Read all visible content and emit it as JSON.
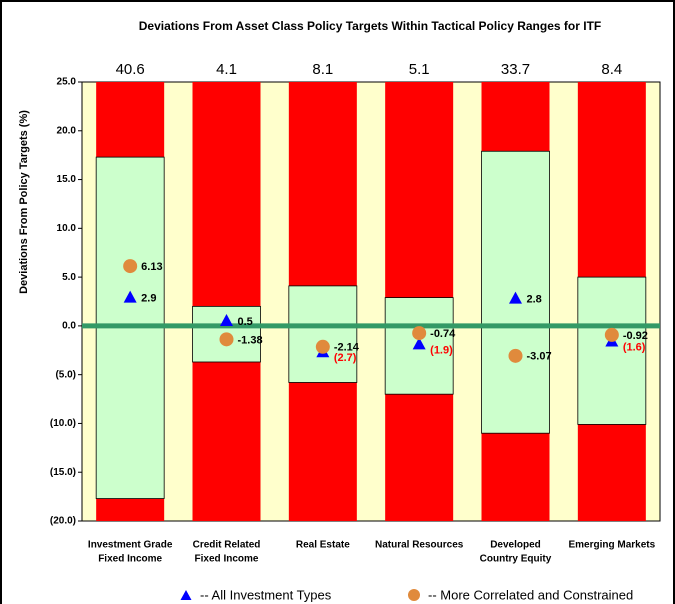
{
  "chart_data": {
    "type": "range_column",
    "title": "Deviations From Asset Class Policy Targets Within Tactical Policy Ranges for  ITF",
    "y_label": "Deviations From Policy Targets (%)",
    "categories": [
      [
        "Investment Grade",
        "Fixed Income"
      ],
      [
        "Credit Related",
        "Fixed Income"
      ],
      [
        "Real Estate"
      ],
      [
        "Natural Resources"
      ],
      [
        "Developed",
        "Country Equity"
      ],
      [
        "Emerging Markets"
      ]
    ],
    "policy_targets": [
      40.6,
      4.1,
      8.1,
      5.1,
      33.7,
      8.4
    ],
    "range_low": [
      -17.7,
      -3.7,
      -5.8,
      -7.0,
      -11.0,
      -10.1
    ],
    "range_high": [
      17.3,
      2.0,
      4.1,
      2.9,
      17.9,
      5.0
    ],
    "range_color": "#ccffcc",
    "outside_color": "#ff0000",
    "plot_background": "#ffffcc",
    "zero_line_color": "#339966",
    "series": [
      {
        "name": "--  All Investment Types",
        "color": "#0000ff",
        "marker": "triangle",
        "values": [
          2.9,
          0.5,
          -2.7,
          -1.9,
          2.8,
          -1.6
        ],
        "value_labels": [
          "2.9",
          "0.5",
          "(2.7)",
          "(1.9)",
          "2.8",
          "(1.6)"
        ]
      },
      {
        "name": "-- More Correlated and Constrained",
        "color": "#e08a3c",
        "marker": "circle",
        "values": [
          6.13,
          -1.38,
          -2.14,
          -0.74,
          -3.07,
          -0.92
        ]
      }
    ],
    "ylim": [
      -20,
      25
    ],
    "yticks": [
      {
        "value": -20,
        "label": "(20.0)"
      },
      {
        "value": -15,
        "label": "(15.0)"
      },
      {
        "value": -10,
        "label": "(10.0)"
      },
      {
        "value": -5,
        "label": "(5.0)"
      },
      {
        "value": 0,
        "label": "0.0"
      },
      {
        "value": 5,
        "label": "5.0"
      },
      {
        "value": 10,
        "label": "10.0"
      },
      {
        "value": 15,
        "label": "15.0"
      },
      {
        "value": 20,
        "label": "20.0"
      },
      {
        "value": 25,
        "label": "25.0"
      }
    ]
  }
}
